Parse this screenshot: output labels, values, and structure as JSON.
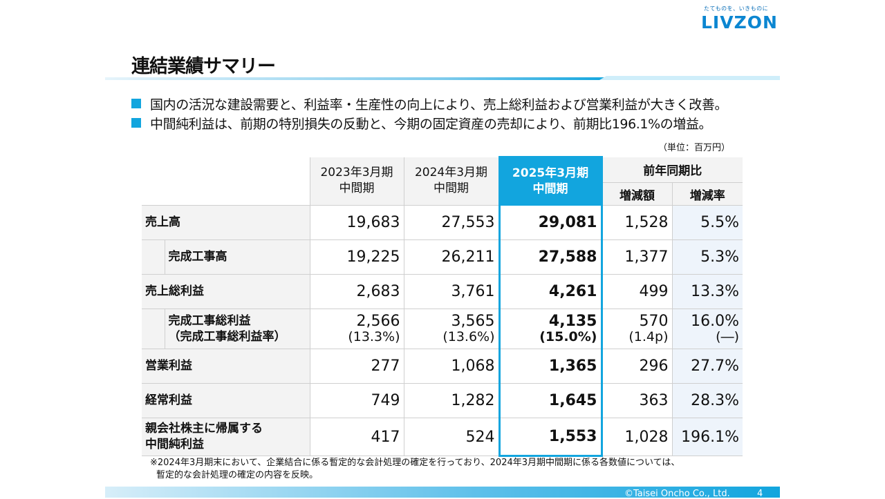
{
  "brand": {
    "tagline": "たてものを、いきものに",
    "logo": "LIVZON",
    "accent": "#12a5de"
  },
  "title": "連結業績サマリー",
  "bullets": [
    "国内の活況な建設需要と、利益率・生産性の向上により、売上総利益および営業利益が大きく改善。",
    "中間純利益は、前期の特別損失の反動と、今期の固定資産の売却により、前期比196.1%の増益。"
  ],
  "unit": "（単位：百万円）",
  "table": {
    "headers": {
      "fy2023": [
        "2023年3月期",
        "中間期"
      ],
      "fy2024": [
        "2024年3月期",
        "中間期"
      ],
      "fy2025": [
        "2025年3月期",
        "中間期"
      ],
      "yoy": "前年同期比",
      "change": "増減額",
      "rate": "増減率"
    },
    "rows": [
      {
        "label": "売上高",
        "v2023": "19,683",
        "v2024": "27,553",
        "v2025": "29,081",
        "change": "1,528",
        "rate": "5.5%"
      },
      {
        "label": "完成工事高",
        "v2023": "19,225",
        "v2024": "26,211",
        "v2025": "27,588",
        "change": "1,377",
        "rate": "5.3%"
      },
      {
        "label": "売上総利益",
        "v2023": "2,683",
        "v2024": "3,761",
        "v2025": "4,261",
        "change": "499",
        "rate": "13.3%"
      },
      {
        "label": "完成工事総利益",
        "label2": "（完成工事総利益率）",
        "v2023": "2,566",
        "v2023b": "(13.3%)",
        "v2024": "3,565",
        "v2024b": "(13.6%)",
        "v2025": "4,135",
        "v2025b": "(15.0%)",
        "change": "570",
        "changeb": "(1.4p)",
        "rate": "16.0%",
        "rateb": "(―)"
      },
      {
        "label": "営業利益",
        "v2023": "277",
        "v2024": "1,068",
        "v2025": "1,365",
        "change": "296",
        "rate": "27.7%"
      },
      {
        "label": "経常利益",
        "v2023": "749",
        "v2024": "1,282",
        "v2025": "1,645",
        "change": "363",
        "rate": "28.3%"
      },
      {
        "label": "親会社株主に帰属する",
        "label2": "中間純利益",
        "v2023": "417",
        "v2024": "524",
        "v2025": "1,553",
        "change": "1,028",
        "rate": "196.1%"
      }
    ]
  },
  "note": [
    "※2024年3月期末において、企業結合に係る暫定的な会計処理の確定を行っており、2024年3月期中間期に係る各数値については、",
    "暫定的な会計処理の確定の内容を反映。"
  ],
  "footer": {
    "copyright": "©Taisei Oncho Co., Ltd.",
    "page": "4"
  }
}
